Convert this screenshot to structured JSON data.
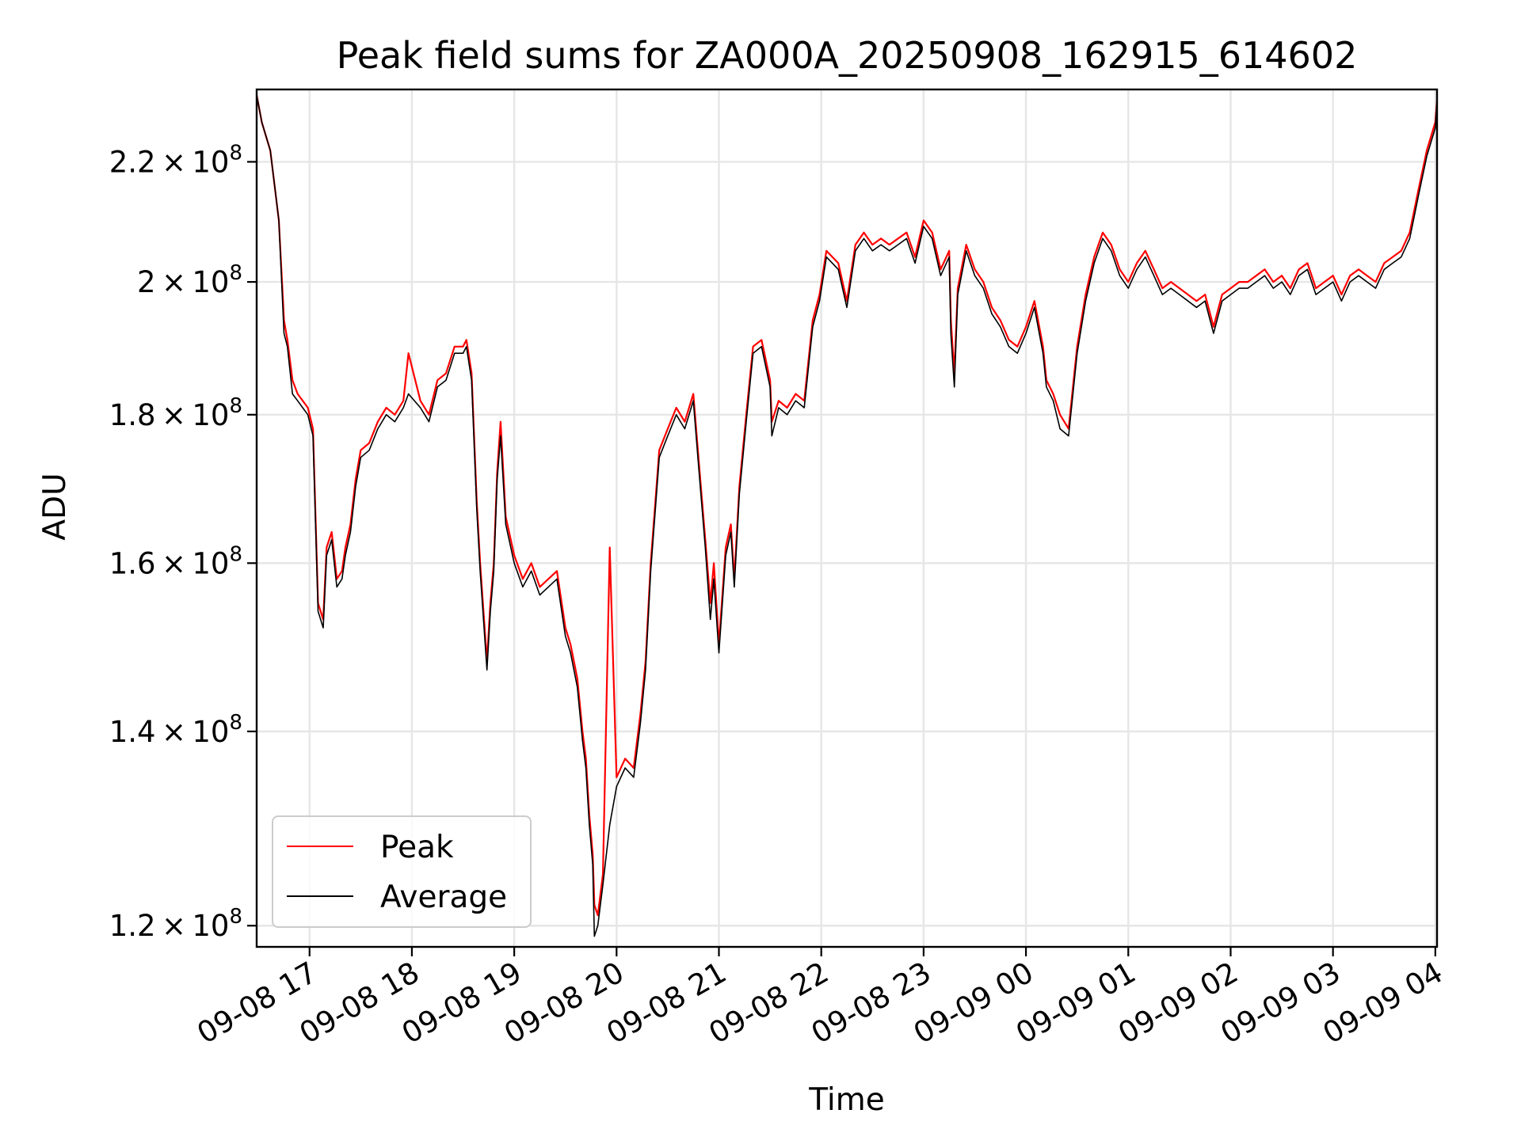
{
  "chart_data": {
    "type": "line",
    "title": "Peak field sums for ZA000A_20250908_162915_614602",
    "xlabel": "Time",
    "ylabel": "ADU",
    "yscale": "log",
    "grid": true,
    "legend_position": "lower-left",
    "xlim": [
      "2025-09-08 16:29",
      "2025-09-09 04:01"
    ],
    "ylim": [
      118000000,
      233000000
    ],
    "x_ticks": [
      {
        "value": "2025-09-08 17:00",
        "label": "09-08 17"
      },
      {
        "value": "2025-09-08 18:00",
        "label": "09-08 18"
      },
      {
        "value": "2025-09-08 19:00",
        "label": "09-08 19"
      },
      {
        "value": "2025-09-08 20:00",
        "label": "09-08 20"
      },
      {
        "value": "2025-09-08 21:00",
        "label": "09-08 21"
      },
      {
        "value": "2025-09-08 22:00",
        "label": "09-08 22"
      },
      {
        "value": "2025-09-08 23:00",
        "label": "09-08 23"
      },
      {
        "value": "2025-09-09 00:00",
        "label": "09-09 00"
      },
      {
        "value": "2025-09-09 01:00",
        "label": "09-09 01"
      },
      {
        "value": "2025-09-09 02:00",
        "label": "09-09 02"
      },
      {
        "value": "2025-09-09 03:00",
        "label": "09-09 03"
      },
      {
        "value": "2025-09-09 04:00",
        "label": "09-09 04"
      }
    ],
    "y_ticks": [
      {
        "value": 120000000,
        "mantissa": "1.2",
        "base": "10",
        "exp": "8"
      },
      {
        "value": 140000000,
        "mantissa": "1.4",
        "base": "10",
        "exp": "8"
      },
      {
        "value": 160000000,
        "mantissa": "1.6",
        "base": "10",
        "exp": "8"
      },
      {
        "value": 180000000,
        "mantissa": "1.8",
        "base": "10",
        "exp": "8"
      },
      {
        "value": 200000000,
        "mantissa": "2",
        "base": "10",
        "exp": "8"
      },
      {
        "value": 220000000,
        "mantissa": "2.2",
        "base": "10",
        "exp": "8"
      }
    ],
    "series": [
      {
        "name": "Peak",
        "color": "#ff0000",
        "x": [
          "2025-09-08 16:29",
          "2025-09-08 16:32",
          "2025-09-08 16:37",
          "2025-09-08 16:42",
          "2025-09-08 16:45",
          "2025-09-08 16:47",
          "2025-09-08 16:50",
          "2025-09-08 16:53",
          "2025-09-08 16:56",
          "2025-09-08 16:59",
          "2025-09-08 17:02",
          "2025-09-08 17:05",
          "2025-09-08 17:08",
          "2025-09-08 17:10",
          "2025-09-08 17:13",
          "2025-09-08 17:16",
          "2025-09-08 17:19",
          "2025-09-08 17:21",
          "2025-09-08 17:24",
          "2025-09-08 17:27",
          "2025-09-08 17:30",
          "2025-09-08 17:35",
          "2025-09-08 17:40",
          "2025-09-08 17:45",
          "2025-09-08 17:50",
          "2025-09-08 17:55",
          "2025-09-08 17:58",
          "2025-09-08 18:05",
          "2025-09-08 18:10",
          "2025-09-08 18:15",
          "2025-09-08 18:20",
          "2025-09-08 18:25",
          "2025-09-08 18:30",
          "2025-09-08 18:32",
          "2025-09-08 18:35",
          "2025-09-08 18:38",
          "2025-09-08 18:40",
          "2025-09-08 18:44",
          "2025-09-08 18:46",
          "2025-09-08 18:48",
          "2025-09-08 18:50",
          "2025-09-08 18:52",
          "2025-09-08 18:55",
          "2025-09-08 19:00",
          "2025-09-08 19:05",
          "2025-09-08 19:10",
          "2025-09-08 19:15",
          "2025-09-08 19:20",
          "2025-09-08 19:25",
          "2025-09-08 19:30",
          "2025-09-08 19:33",
          "2025-09-08 19:37",
          "2025-09-08 19:40",
          "2025-09-08 19:42",
          "2025-09-08 19:44",
          "2025-09-08 19:46",
          "2025-09-08 19:47",
          "2025-09-08 19:49",
          "2025-09-08 19:52",
          "2025-09-08 19:56",
          "2025-09-08 20:00",
          "2025-09-08 20:05",
          "2025-09-08 20:10",
          "2025-09-08 20:14",
          "2025-09-08 20:17",
          "2025-09-08 20:20",
          "2025-09-08 20:25",
          "2025-09-08 20:30",
          "2025-09-08 20:35",
          "2025-09-08 20:40",
          "2025-09-08 20:45",
          "2025-09-08 20:48",
          "2025-09-08 20:52",
          "2025-09-08 20:55",
          "2025-09-08 20:57",
          "2025-09-08 21:00",
          "2025-09-08 21:04",
          "2025-09-08 21:07",
          "2025-09-08 21:09",
          "2025-09-08 21:12",
          "2025-09-08 21:16",
          "2025-09-08 21:20",
          "2025-09-08 21:25",
          "2025-09-08 21:30",
          "2025-09-08 21:31",
          "2025-09-08 21:35",
          "2025-09-08 21:40",
          "2025-09-08 21:45",
          "2025-09-08 21:50",
          "2025-09-08 21:55",
          "2025-09-08 21:59",
          "2025-09-08 22:03",
          "2025-09-08 22:10",
          "2025-09-08 22:15",
          "2025-09-08 22:20",
          "2025-09-08 22:25",
          "2025-09-08 22:30",
          "2025-09-08 22:35",
          "2025-09-08 22:40",
          "2025-09-08 22:45",
          "2025-09-08 22:50",
          "2025-09-08 22:55",
          "2025-09-08 23:00",
          "2025-09-08 23:05",
          "2025-09-08 23:10",
          "2025-09-08 23:15",
          "2025-09-08 23:16",
          "2025-09-08 23:18",
          "2025-09-08 23:20",
          "2025-09-08 23:25",
          "2025-09-08 23:30",
          "2025-09-08 23:35",
          "2025-09-08 23:40",
          "2025-09-08 23:45",
          "2025-09-08 23:50",
          "2025-09-08 23:55",
          "2025-09-09 00:00",
          "2025-09-09 00:05",
          "2025-09-09 00:10",
          "2025-09-09 00:12",
          "2025-09-09 00:16",
          "2025-09-09 00:20",
          "2025-09-09 00:25",
          "2025-09-09 00:30",
          "2025-09-09 00:35",
          "2025-09-09 00:40",
          "2025-09-09 00:45",
          "2025-09-09 00:50",
          "2025-09-09 00:55",
          "2025-09-09 01:00",
          "2025-09-09 01:05",
          "2025-09-09 01:10",
          "2025-09-09 01:15",
          "2025-09-09 01:20",
          "2025-09-09 01:25",
          "2025-09-09 01:30",
          "2025-09-09 01:35",
          "2025-09-09 01:40",
          "2025-09-09 01:45",
          "2025-09-09 01:50",
          "2025-09-09 01:55",
          "2025-09-09 02:00",
          "2025-09-09 02:05",
          "2025-09-09 02:10",
          "2025-09-09 02:15",
          "2025-09-09 02:20",
          "2025-09-09 02:25",
          "2025-09-09 02:30",
          "2025-09-09 02:35",
          "2025-09-09 02:40",
          "2025-09-09 02:45",
          "2025-09-09 02:50",
          "2025-09-09 02:55",
          "2025-09-09 03:00",
          "2025-09-09 03:05",
          "2025-09-09 03:10",
          "2025-09-09 03:15",
          "2025-09-09 03:20",
          "2025-09-09 03:25",
          "2025-09-09 03:30",
          "2025-09-09 03:35",
          "2025-09-09 03:40",
          "2025-09-09 03:45",
          "2025-09-09 03:50",
          "2025-09-09 03:55",
          "2025-09-09 04:00",
          "2025-09-09 04:01"
        ],
        "y": [
          232000000,
          227000000,
          222000000,
          210000000,
          194000000,
          191000000,
          185000000,
          183000000,
          182000000,
          181000000,
          178000000,
          155000000,
          153000000,
          162000000,
          164000000,
          158000000,
          159000000,
          162000000,
          165000000,
          171000000,
          175000000,
          176000000,
          179000000,
          181000000,
          180000000,
          182000000,
          189000000,
          182000000,
          180000000,
          185000000,
          186000000,
          190000000,
          190000000,
          191000000,
          186000000,
          168000000,
          160000000,
          148000000,
          155000000,
          160000000,
          172000000,
          179000000,
          166000000,
          161000000,
          158000000,
          160000000,
          157000000,
          158000000,
          159000000,
          152000000,
          150000000,
          146000000,
          140000000,
          137000000,
          131000000,
          127000000,
          122000000,
          121000000,
          125000000,
          162000000,
          135000000,
          137000000,
          136000000,
          142000000,
          148000000,
          160000000,
          175000000,
          178000000,
          181000000,
          179000000,
          183000000,
          174000000,
          163000000,
          155000000,
          160000000,
          150000000,
          162000000,
          165000000,
          158000000,
          170000000,
          180000000,
          190000000,
          191000000,
          185000000,
          179000000,
          182000000,
          181000000,
          183000000,
          182000000,
          194000000,
          198000000,
          205000000,
          203000000,
          197000000,
          206000000,
          208000000,
          206000000,
          207000000,
          206000000,
          207000000,
          208000000,
          204000000,
          210000000,
          208000000,
          202000000,
          205000000,
          194000000,
          186000000,
          199000000,
          206000000,
          202000000,
          200000000,
          196000000,
          194000000,
          191000000,
          190000000,
          193000000,
          197000000,
          190000000,
          185000000,
          183000000,
          180000000,
          178000000,
          190000000,
          198000000,
          204000000,
          208000000,
          206000000,
          202000000,
          200000000,
          203000000,
          205000000,
          202000000,
          199000000,
          200000000,
          199000000,
          198000000,
          197000000,
          198000000,
          193000000,
          198000000,
          199000000,
          200000000,
          200000000,
          201000000,
          202000000,
          200000000,
          201000000,
          199000000,
          202000000,
          203000000,
          199000000,
          200000000,
          201000000,
          198000000,
          201000000,
          202000000,
          201000000,
          200000000,
          203000000,
          204000000,
          205000000,
          208000000,
          215000000,
          222000000,
          227000000,
          231000000
        ],
        "visible_values_note_free": true
      },
      {
        "name": "Average",
        "color": "#000000",
        "x": [
          "2025-09-08 16:29",
          "2025-09-08 16:32",
          "2025-09-08 16:37",
          "2025-09-08 16:42",
          "2025-09-08 16:45",
          "2025-09-08 16:47",
          "2025-09-08 16:50",
          "2025-09-08 16:53",
          "2025-09-08 16:56",
          "2025-09-08 16:59",
          "2025-09-08 17:02",
          "2025-09-08 17:05",
          "2025-09-08 17:08",
          "2025-09-08 17:10",
          "2025-09-08 17:13",
          "2025-09-08 17:16",
          "2025-09-08 17:19",
          "2025-09-08 17:21",
          "2025-09-08 17:24",
          "2025-09-08 17:27",
          "2025-09-08 17:30",
          "2025-09-08 17:35",
          "2025-09-08 17:40",
          "2025-09-08 17:45",
          "2025-09-08 17:50",
          "2025-09-08 17:55",
          "2025-09-08 17:58",
          "2025-09-08 18:05",
          "2025-09-08 18:10",
          "2025-09-08 18:15",
          "2025-09-08 18:20",
          "2025-09-08 18:25",
          "2025-09-08 18:30",
          "2025-09-08 18:32",
          "2025-09-08 18:35",
          "2025-09-08 18:38",
          "2025-09-08 18:40",
          "2025-09-08 18:44",
          "2025-09-08 18:46",
          "2025-09-08 18:48",
          "2025-09-08 18:50",
          "2025-09-08 18:52",
          "2025-09-08 18:55",
          "2025-09-08 19:00",
          "2025-09-08 19:05",
          "2025-09-08 19:10",
          "2025-09-08 19:15",
          "2025-09-08 19:20",
          "2025-09-08 19:25",
          "2025-09-08 19:30",
          "2025-09-08 19:33",
          "2025-09-08 19:37",
          "2025-09-08 19:40",
          "2025-09-08 19:42",
          "2025-09-08 19:44",
          "2025-09-08 19:46",
          "2025-09-08 19:47",
          "2025-09-08 19:49",
          "2025-09-08 19:52",
          "2025-09-08 19:56",
          "2025-09-08 20:00",
          "2025-09-08 20:05",
          "2025-09-08 20:10",
          "2025-09-08 20:14",
          "2025-09-08 20:17",
          "2025-09-08 20:20",
          "2025-09-08 20:25",
          "2025-09-08 20:30",
          "2025-09-08 20:35",
          "2025-09-08 20:40",
          "2025-09-08 20:45",
          "2025-09-08 20:48",
          "2025-09-08 20:52",
          "2025-09-08 20:55",
          "2025-09-08 20:57",
          "2025-09-08 21:00",
          "2025-09-08 21:04",
          "2025-09-08 21:07",
          "2025-09-08 21:09",
          "2025-09-08 21:12",
          "2025-09-08 21:16",
          "2025-09-08 21:20",
          "2025-09-08 21:25",
          "2025-09-08 21:30",
          "2025-09-08 21:31",
          "2025-09-08 21:35",
          "2025-09-08 21:40",
          "2025-09-08 21:45",
          "2025-09-08 21:50",
          "2025-09-08 21:55",
          "2025-09-08 21:59",
          "2025-09-08 22:03",
          "2025-09-08 22:10",
          "2025-09-08 22:15",
          "2025-09-08 22:20",
          "2025-09-08 22:25",
          "2025-09-08 22:30",
          "2025-09-08 22:35",
          "2025-09-08 22:40",
          "2025-09-08 22:45",
          "2025-09-08 22:50",
          "2025-09-08 22:55",
          "2025-09-08 23:00",
          "2025-09-08 23:05",
          "2025-09-08 23:10",
          "2025-09-08 23:15",
          "2025-09-08 23:16",
          "2025-09-08 23:18",
          "2025-09-08 23:20",
          "2025-09-08 23:25",
          "2025-09-08 23:30",
          "2025-09-08 23:35",
          "2025-09-08 23:40",
          "2025-09-08 23:45",
          "2025-09-08 23:50",
          "2025-09-08 23:55",
          "2025-09-09 00:00",
          "2025-09-09 00:05",
          "2025-09-09 00:10",
          "2025-09-09 00:12",
          "2025-09-09 00:16",
          "2025-09-09 00:20",
          "2025-09-09 00:25",
          "2025-09-09 00:30",
          "2025-09-09 00:35",
          "2025-09-09 00:40",
          "2025-09-09 00:45",
          "2025-09-09 00:50",
          "2025-09-09 00:55",
          "2025-09-09 01:00",
          "2025-09-09 01:05",
          "2025-09-09 01:10",
          "2025-09-09 01:15",
          "2025-09-09 01:20",
          "2025-09-09 01:25",
          "2025-09-09 01:30",
          "2025-09-09 01:35",
          "2025-09-09 01:40",
          "2025-09-09 01:45",
          "2025-09-09 01:50",
          "2025-09-09 01:55",
          "2025-09-09 02:00",
          "2025-09-09 02:05",
          "2025-09-09 02:10",
          "2025-09-09 02:15",
          "2025-09-09 02:20",
          "2025-09-09 02:25",
          "2025-09-09 02:30",
          "2025-09-09 02:35",
          "2025-09-09 02:40",
          "2025-09-09 02:45",
          "2025-09-09 02:50",
          "2025-09-09 02:55",
          "2025-09-09 03:00",
          "2025-09-09 03:05",
          "2025-09-09 03:10",
          "2025-09-09 03:15",
          "2025-09-09 03:20",
          "2025-09-09 03:25",
          "2025-09-09 03:30",
          "2025-09-09 03:35",
          "2025-09-09 03:40",
          "2025-09-09 03:45",
          "2025-09-09 03:50",
          "2025-09-09 03:55",
          "2025-09-09 04:00",
          "2025-09-09 04:01"
        ],
        "y": [
          232000000,
          227000000,
          222000000,
          210000000,
          192000000,
          190000000,
          183000000,
          182000000,
          181000000,
          180000000,
          177000000,
          154000000,
          152000000,
          161000000,
          163000000,
          157000000,
          158000000,
          161000000,
          164000000,
          170000000,
          174000000,
          175000000,
          178000000,
          180000000,
          179000000,
          181000000,
          183000000,
          181000000,
          179000000,
          184000000,
          185000000,
          189000000,
          189000000,
          190000000,
          185000000,
          167000000,
          159000000,
          147000000,
          154000000,
          159000000,
          171000000,
          177000000,
          165000000,
          160000000,
          157000000,
          159000000,
          156000000,
          157000000,
          158000000,
          151000000,
          149000000,
          145000000,
          139000000,
          136000000,
          130000000,
          126000000,
          119000000,
          120000000,
          124000000,
          130000000,
          134000000,
          136000000,
          135000000,
          141000000,
          147000000,
          159000000,
          174000000,
          177000000,
          180000000,
          178000000,
          182000000,
          173000000,
          162000000,
          153000000,
          158000000,
          149000000,
          161000000,
          164000000,
          157000000,
          169000000,
          179000000,
          189000000,
          190000000,
          184000000,
          177000000,
          181000000,
          180000000,
          182000000,
          181000000,
          193000000,
          197000000,
          204000000,
          202000000,
          196000000,
          205000000,
          207000000,
          205000000,
          206000000,
          205000000,
          206000000,
          207000000,
          203000000,
          209000000,
          207000000,
          201000000,
          204000000,
          192000000,
          184000000,
          198000000,
          205000000,
          201000000,
          199000000,
          195000000,
          193000000,
          190000000,
          189000000,
          192000000,
          196000000,
          189000000,
          184000000,
          182000000,
          178000000,
          177000000,
          189000000,
          197000000,
          203000000,
          207000000,
          205000000,
          201000000,
          199000000,
          202000000,
          204000000,
          201000000,
          198000000,
          199000000,
          198000000,
          197000000,
          196000000,
          197000000,
          192000000,
          197000000,
          198000000,
          199000000,
          199000000,
          200000000,
          201000000,
          199000000,
          200000000,
          198000000,
          201000000,
          202000000,
          198000000,
          199000000,
          200000000,
          197000000,
          200000000,
          201000000,
          200000000,
          199000000,
          202000000,
          203000000,
          204000000,
          207000000,
          214000000,
          221000000,
          226000000,
          231000000
        ]
      }
    ]
  }
}
